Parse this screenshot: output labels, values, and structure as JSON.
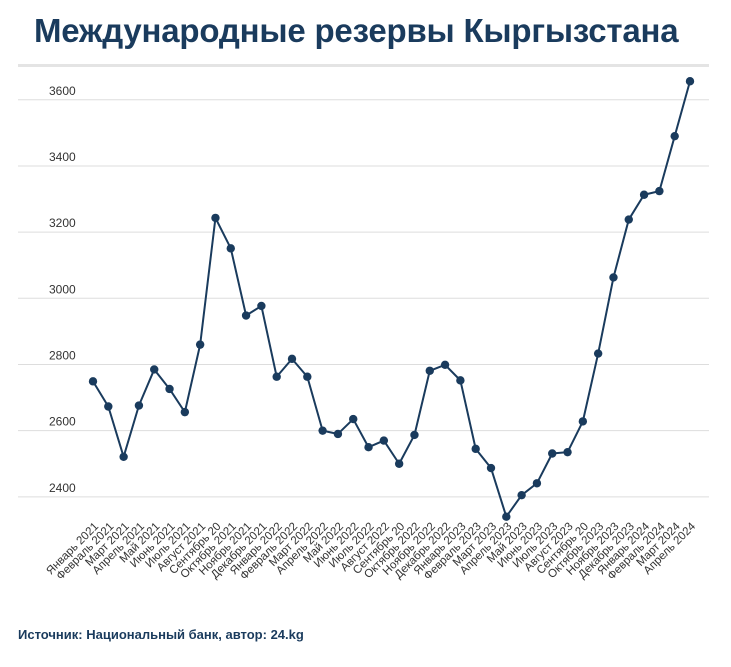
{
  "title": "Международные резервы Кыргызстана",
  "source": "Источник: Национальный банк, автор: 24.kg",
  "colors": {
    "line": "#1a3b5d",
    "grid": "#dddddd",
    "axis_text": "#333333",
    "title": "#1a3b5d"
  },
  "chart_data": {
    "type": "line",
    "title": "Международные резервы Кыргызстана",
    "xlabel": "",
    "ylabel": "",
    "ylim": [
      2330,
      3690
    ],
    "yticks": [
      2400,
      2600,
      2800,
      3000,
      3200,
      3400,
      3600
    ],
    "grid": true,
    "categories": [
      "Январь 2021",
      "Февраль 2021",
      "Март 2021",
      "Апрель 2021",
      "Май 2021",
      "Июнь 2021",
      "Июль 2021",
      "Август 2021",
      "Сентябрь 20",
      "Октябрь 2021",
      "Ноябрь 2021",
      "Декабрь 2021",
      "Январь 2022",
      "Февраль 2022",
      "Март 2022",
      "Апрель 2022",
      "Май 2022",
      "Июнь 2022",
      "Июль 2022",
      "Август 2022",
      "Сентябрь 20",
      "Октябрь 2022",
      "Ноябрь 2022",
      "Декабрь 2022",
      "Январь 2023",
      "Февраль 2023",
      "Март 2023",
      "Апрель 2023",
      "Май 2023",
      "Июнь 2023",
      "Июль 2023",
      "Август 2023",
      "Сентябрь 20",
      "Октябрь 2023",
      "Ноябрь 2023",
      "Декабрь 2023",
      "Январь 2024",
      "Февраль 2024",
      "Март 2024",
      "Апрель 2024"
    ],
    "series": [
      {
        "values": [
          2749,
          2673,
          2521,
          2676,
          2785,
          2726,
          2656,
          2860,
          3243,
          3151,
          2948,
          2977,
          2763,
          2817,
          2763,
          2600,
          2590,
          2635,
          2550,
          2570,
          2500,
          2587,
          2781,
          2799,
          2752,
          2545,
          2487,
          2340,
          2405,
          2441,
          2531,
          2535,
          2628,
          2833,
          3063,
          3238,
          3313,
          3324,
          3490,
          3656
        ]
      }
    ]
  }
}
